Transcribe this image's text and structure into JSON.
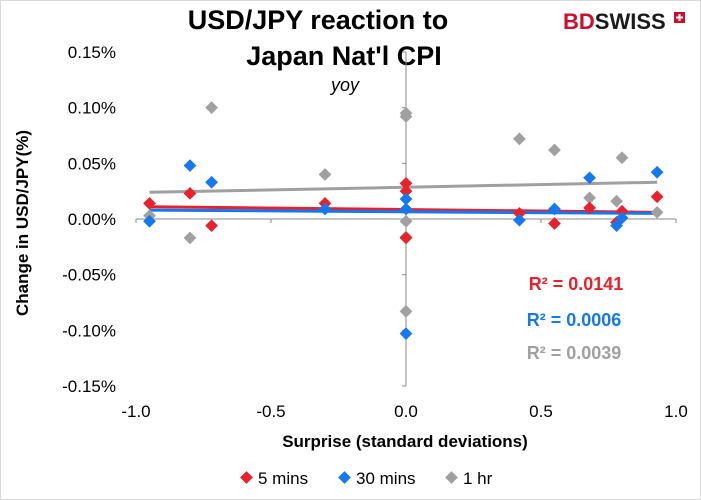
{
  "brand": {
    "part1": "BD",
    "part2": "SWISS",
    "color1": "#c8102e",
    "color2": "#1a1a1a"
  },
  "chart_data": {
    "type": "scatter",
    "title_lines": [
      "USD/JPY reaction to",
      "Japan Nat'l CPI"
    ],
    "subtitle": "yoy",
    "xlabel": "Surprise (standard deviations)",
    "ylabel": "Change in USD/JPY(%)",
    "xlim": [
      -1.0,
      1.0
    ],
    "ylim": [
      -0.15,
      0.15
    ],
    "x_ticks": [
      -1.0,
      -0.5,
      0.0,
      0.5,
      1.0
    ],
    "x_tick_labels": [
      "-1.0",
      "-0.5",
      "0.0",
      "0.5",
      "1.0"
    ],
    "y_ticks": [
      0.15,
      0.1,
      0.05,
      0.0,
      -0.05,
      -0.1,
      -0.15
    ],
    "y_tick_labels": [
      "0.15%",
      "0.10%",
      "0.05%",
      "0.00%",
      "-0.05%",
      "-0.10%",
      "-0.15%"
    ],
    "series": [
      {
        "name": "5 mins",
        "color": "#e8212d",
        "points": [
          [
            -0.95,
            0.014
          ],
          [
            -0.8,
            0.023
          ],
          [
            -0.72,
            -0.006
          ],
          [
            -0.3,
            0.014
          ],
          [
            0.0,
            0.032
          ],
          [
            0.0,
            0.025
          ],
          [
            0.0,
            -0.017
          ],
          [
            0.42,
            0.005
          ],
          [
            0.55,
            -0.004
          ],
          [
            0.68,
            0.01
          ],
          [
            0.78,
            -0.003
          ],
          [
            0.8,
            0.007
          ],
          [
            0.93,
            0.02
          ]
        ],
        "trend": {
          "start": [
            -0.95,
            0.011
          ],
          "end": [
            0.93,
            0.006
          ]
        },
        "r2_label": "R² = 0.0141"
      },
      {
        "name": "30 mins",
        "color": "#1479ef",
        "points": [
          [
            -0.95,
            -0.002
          ],
          [
            -0.8,
            0.048
          ],
          [
            -0.72,
            0.033
          ],
          [
            -0.3,
            0.009
          ],
          [
            0.0,
            0.018
          ],
          [
            0.0,
            0.009
          ],
          [
            0.0,
            -0.103
          ],
          [
            0.42,
            -0.001
          ],
          [
            0.55,
            0.009
          ],
          [
            0.68,
            0.037
          ],
          [
            0.78,
            -0.006
          ],
          [
            0.8,
            0.001
          ],
          [
            0.93,
            0.042
          ]
        ],
        "trend": {
          "start": [
            -0.95,
            0.008
          ],
          "end": [
            0.93,
            0.005
          ]
        },
        "r2_label": "R² = 0.0006"
      },
      {
        "name": "1 hr",
        "color": "#a0a0a0",
        "points": [
          [
            -0.95,
            0.003
          ],
          [
            -0.8,
            -0.017
          ],
          [
            -0.72,
            0.1
          ],
          [
            -0.3,
            0.04
          ],
          [
            0.0,
            0.095
          ],
          [
            0.0,
            0.092
          ],
          [
            0.0,
            -0.002
          ],
          [
            0.0,
            -0.016
          ],
          [
            0.0,
            -0.083
          ],
          [
            0.42,
            0.072
          ],
          [
            0.55,
            0.062
          ],
          [
            0.68,
            0.019
          ],
          [
            0.78,
            0.016
          ],
          [
            0.8,
            0.055
          ],
          [
            0.93,
            0.006
          ]
        ],
        "trend": {
          "start": [
            -0.95,
            0.024
          ],
          "end": [
            0.93,
            0.033
          ]
        },
        "r2_label": "R² = 0.0039"
      }
    ],
    "legend_position": "bottom"
  }
}
